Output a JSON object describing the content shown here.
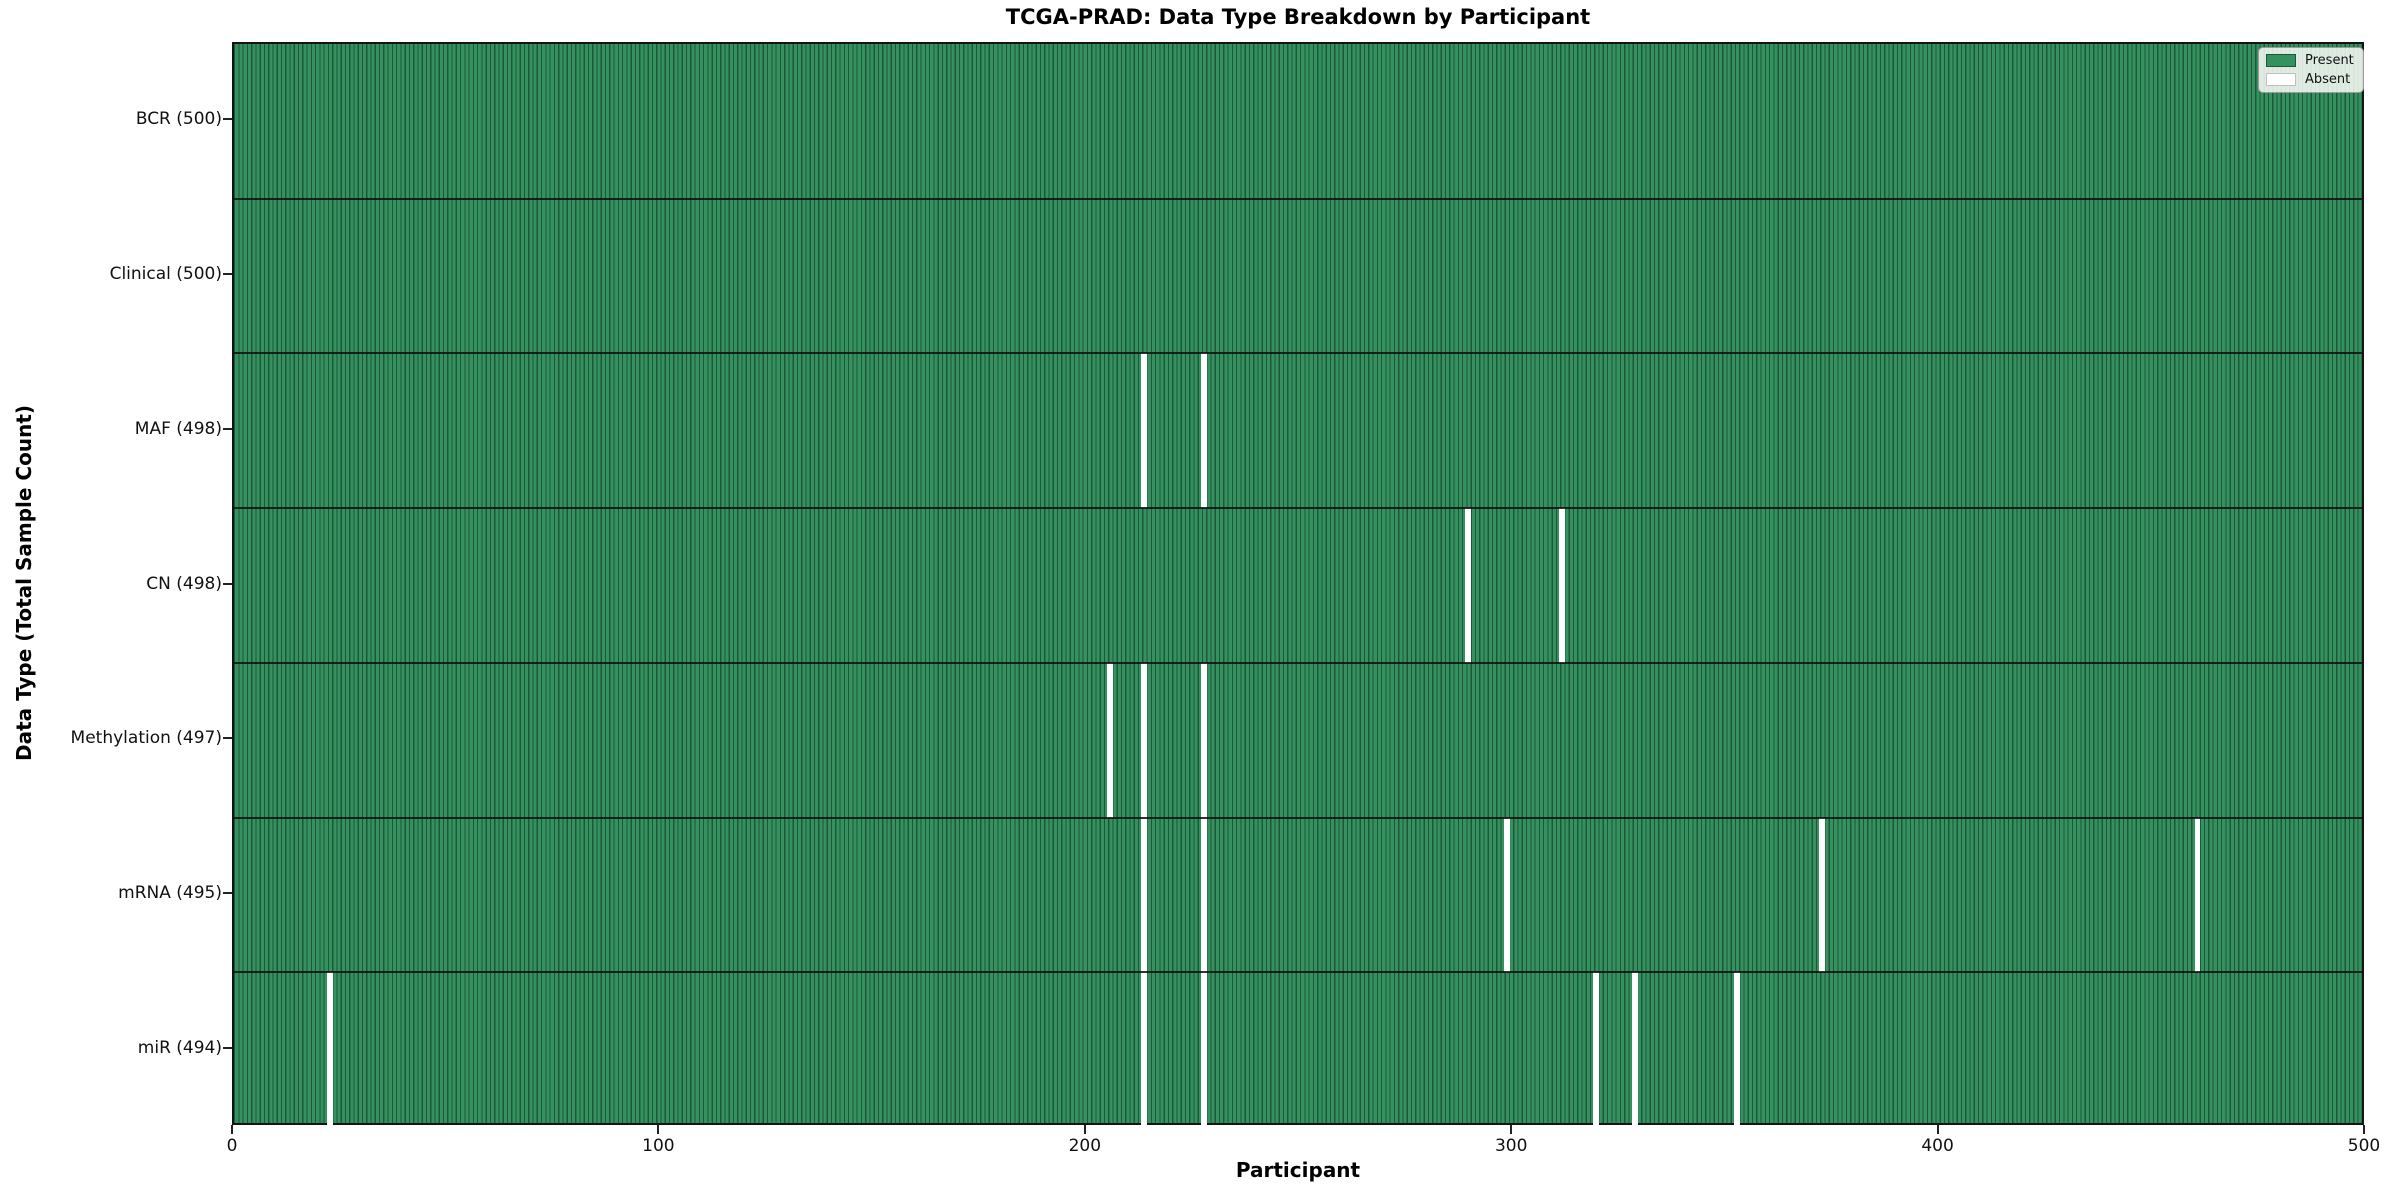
{
  "title": "TCGA-PRAD: Data Type Breakdown by Participant",
  "xlabel": "Participant",
  "ylabel": "Data Type (Total Sample Count)",
  "legend": {
    "present_label": "Present",
    "absent_label": "Absent"
  },
  "colors": {
    "present_fill": "#359260",
    "bar_edge": "#1c5838",
    "absent": "#ffffff",
    "separator": "#141414",
    "legend_bg": "#fbfbf6"
  },
  "chart_data": {
    "type": "heatmap",
    "title": "TCGA-PRAD: Data Type Breakdown by Participant",
    "xlabel": "Participant",
    "ylabel": "Data Type (Total Sample Count)",
    "x_range": [
      0,
      500
    ],
    "n_participants": 500,
    "x_ticks": [
      0,
      100,
      200,
      300,
      400,
      500
    ],
    "grid": false,
    "legend_position": "upper right",
    "legend_entries": [
      {
        "label": "Present",
        "color": "#359260"
      },
      {
        "label": "Absent",
        "color": "#ffffff"
      }
    ],
    "rows": [
      {
        "name": "BCR",
        "label": "BCR (500)",
        "count": 500,
        "absent_participants": []
      },
      {
        "name": "Clinical",
        "label": "Clinical (500)",
        "count": 500,
        "absent_participants": []
      },
      {
        "name": "MAF",
        "label": "MAF (498)",
        "count": 498,
        "absent_participants": [
          213,
          227
        ]
      },
      {
        "name": "CN",
        "label": "CN (498)",
        "count": 498,
        "absent_participants": [
          289,
          311
        ]
      },
      {
        "name": "Methylation",
        "label": "Methylation (497)",
        "count": 497,
        "absent_participants": [
          205,
          213,
          227
        ]
      },
      {
        "name": "mRNA",
        "label": "mRNA (495)",
        "count": 495,
        "absent_participants": [
          213,
          227,
          298,
          372,
          460
        ]
      },
      {
        "name": "miR",
        "label": "miR (494)",
        "count": 494,
        "absent_participants": [
          22,
          213,
          227,
          319,
          328,
          352
        ]
      }
    ]
  }
}
